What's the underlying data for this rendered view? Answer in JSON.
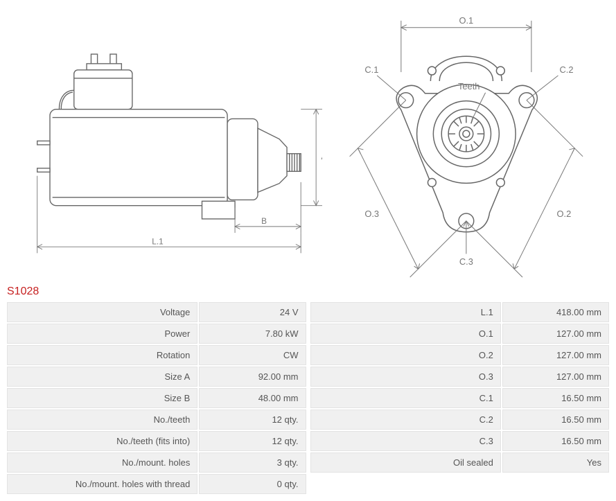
{
  "partCode": "S1028",
  "diagram": {
    "side": {
      "labels": {
        "A": "A",
        "B": "B",
        "L1": "L.1"
      },
      "stroke": "#666666",
      "bg": "#ffffff"
    },
    "front": {
      "labels": {
        "O1": "O.1",
        "O2": "O.2",
        "O3": "O.3",
        "C1": "C.1",
        "C2": "C.2",
        "C3": "C.3",
        "teeth": "Teeth"
      },
      "stroke": "#666666"
    }
  },
  "specsLeft": [
    {
      "label": "Voltage",
      "value": "24 V"
    },
    {
      "label": "Power",
      "value": "7.80 kW"
    },
    {
      "label": "Rotation",
      "value": "CW"
    },
    {
      "label": "Size A",
      "value": "92.00 mm"
    },
    {
      "label": "Size B",
      "value": "48.00 mm"
    },
    {
      "label": "No./teeth",
      "value": "12 qty."
    },
    {
      "label": "No./teeth (fits into)",
      "value": "12 qty."
    },
    {
      "label": "No./mount. holes",
      "value": "3 qty."
    },
    {
      "label": "No./mount. holes with thread",
      "value": "0 qty."
    }
  ],
  "specsRight": [
    {
      "label": "L.1",
      "value": "418.00 mm"
    },
    {
      "label": "O.1",
      "value": "127.00 mm"
    },
    {
      "label": "O.2",
      "value": "127.00 mm"
    },
    {
      "label": "O.3",
      "value": "127.00 mm"
    },
    {
      "label": "C.1",
      "value": "16.50 mm"
    },
    {
      "label": "C.2",
      "value": "16.50 mm"
    },
    {
      "label": "C.3",
      "value": "16.50 mm"
    },
    {
      "label": "Oil sealed",
      "value": "Yes"
    }
  ]
}
